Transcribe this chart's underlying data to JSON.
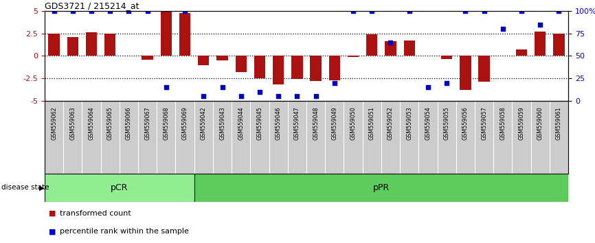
{
  "title": "GDS3721 / 215214_at",
  "samples": [
    "GSM559062",
    "GSM559063",
    "GSM559064",
    "GSM559065",
    "GSM559066",
    "GSM559067",
    "GSM559068",
    "GSM559069",
    "GSM559042",
    "GSM559043",
    "GSM559044",
    "GSM559045",
    "GSM559046",
    "GSM559047",
    "GSM559048",
    "GSM559049",
    "GSM559050",
    "GSM559051",
    "GSM559052",
    "GSM559053",
    "GSM559054",
    "GSM559055",
    "GSM559056",
    "GSM559057",
    "GSM559058",
    "GSM559059",
    "GSM559060",
    "GSM559061"
  ],
  "bar_values": [
    2.5,
    2.1,
    2.6,
    2.5,
    0.0,
    -0.4,
    4.9,
    4.8,
    -1.0,
    -0.5,
    -1.8,
    -2.5,
    -3.2,
    -2.6,
    -2.8,
    -2.7,
    -0.15,
    2.4,
    1.6,
    1.7,
    0.0,
    -0.35,
    -3.8,
    -2.9,
    0.0,
    0.7,
    2.7,
    2.5
  ],
  "dot_values": [
    100,
    100,
    100,
    100,
    100,
    100,
    15,
    100,
    5,
    15,
    5,
    10,
    5,
    5,
    5,
    20,
    100,
    100,
    65,
    100,
    15,
    20,
    100,
    100,
    80,
    100,
    85,
    100
  ],
  "pcr_count": 8,
  "ppr_count": 20,
  "bar_color": "#aa1111",
  "dot_color": "#0000cc",
  "ylim": [
    -5,
    5
  ],
  "yticks_left": [
    -5,
    -2.5,
    0,
    2.5,
    5
  ],
  "ytick_labels_left": [
    "-5",
    "-2.5",
    "0",
    "2.5",
    "5"
  ],
  "ytick_labels_right": [
    "0",
    "25",
    "50",
    "75",
    "100%"
  ],
  "dotted_lines": [
    -2.5,
    0,
    2.5
  ],
  "pcr_color": "#90ee90",
  "ppr_color": "#5ccc5c",
  "sample_bg_color": "#cccccc",
  "label_bar": "transformed count",
  "label_dot": "percentile rank within the sample",
  "disease_state_label": "disease state",
  "pcr_label": "pCR",
  "ppr_label": "pPR"
}
